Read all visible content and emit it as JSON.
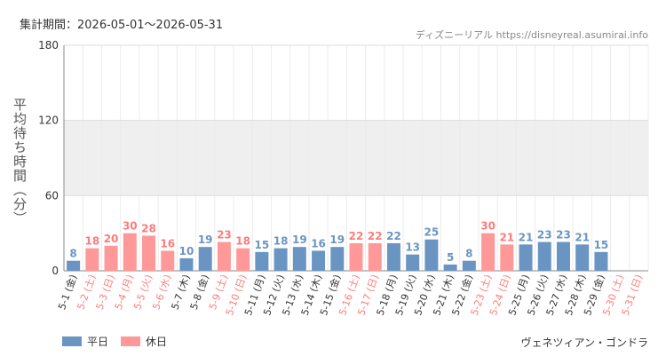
{
  "header": {
    "period_label": "集計期間：2026-05-01〜2026-05-31",
    "credit": "ディズニーリアル https://disneyreal.asumirai.info"
  },
  "footer": {
    "attraction_name": "ヴェネツィアン・ゴンドラ"
  },
  "colors": {
    "weekday": "#6a95c3",
    "holiday": "#ff9999",
    "weekday_label": "#6a95c3",
    "holiday_label": "#ff7b7b",
    "band": "#efefef",
    "grid": "#dddddd"
  },
  "chart_data": {
    "type": "bar",
    "ylabel": "平均待ち時間（分）",
    "xlabel": "",
    "ylim": [
      0,
      180
    ],
    "yticks": [
      0,
      60,
      120,
      180
    ],
    "band": [
      60,
      120
    ],
    "legend": [
      {
        "name": "平日",
        "kind": "weekday"
      },
      {
        "name": "休日",
        "kind": "holiday"
      }
    ],
    "categories": [
      "5-1 (金)",
      "5-2 (土)",
      "5-3 (日)",
      "5-4 (月)",
      "5-5 (火)",
      "5-6 (水)",
      "5-7 (木)",
      "5-8 (金)",
      "5-9 (土)",
      "5-10 (日)",
      "5-11 (月)",
      "5-12 (火)",
      "5-13 (水)",
      "5-14 (木)",
      "5-15 (金)",
      "5-16 (土)",
      "5-17 (日)",
      "5-18 (月)",
      "5-19 (火)",
      "5-20 (水)",
      "5-21 (木)",
      "5-22 (金)",
      "5-23 (土)",
      "5-24 (日)",
      "5-25 (月)",
      "5-26 (火)",
      "5-27 (水)",
      "5-28 (木)",
      "5-29 (金)",
      "5-30 (土)",
      "5-31 (日)"
    ],
    "values": [
      8,
      18,
      20,
      30,
      28,
      16,
      10,
      19,
      23,
      18,
      15,
      18,
      19,
      16,
      19,
      22,
      22,
      22,
      13,
      25,
      5,
      8,
      30,
      21,
      21,
      23,
      23,
      21,
      15,
      null,
      null
    ],
    "kinds": [
      "weekday",
      "holiday",
      "holiday",
      "holiday",
      "holiday",
      "holiday",
      "weekday",
      "weekday",
      "holiday",
      "holiday",
      "weekday",
      "weekday",
      "weekday",
      "weekday",
      "weekday",
      "holiday",
      "holiday",
      "weekday",
      "weekday",
      "weekday",
      "weekday",
      "weekday",
      "holiday",
      "holiday",
      "weekday",
      "weekday",
      "weekday",
      "weekday",
      "weekday",
      "holiday",
      "holiday"
    ]
  }
}
